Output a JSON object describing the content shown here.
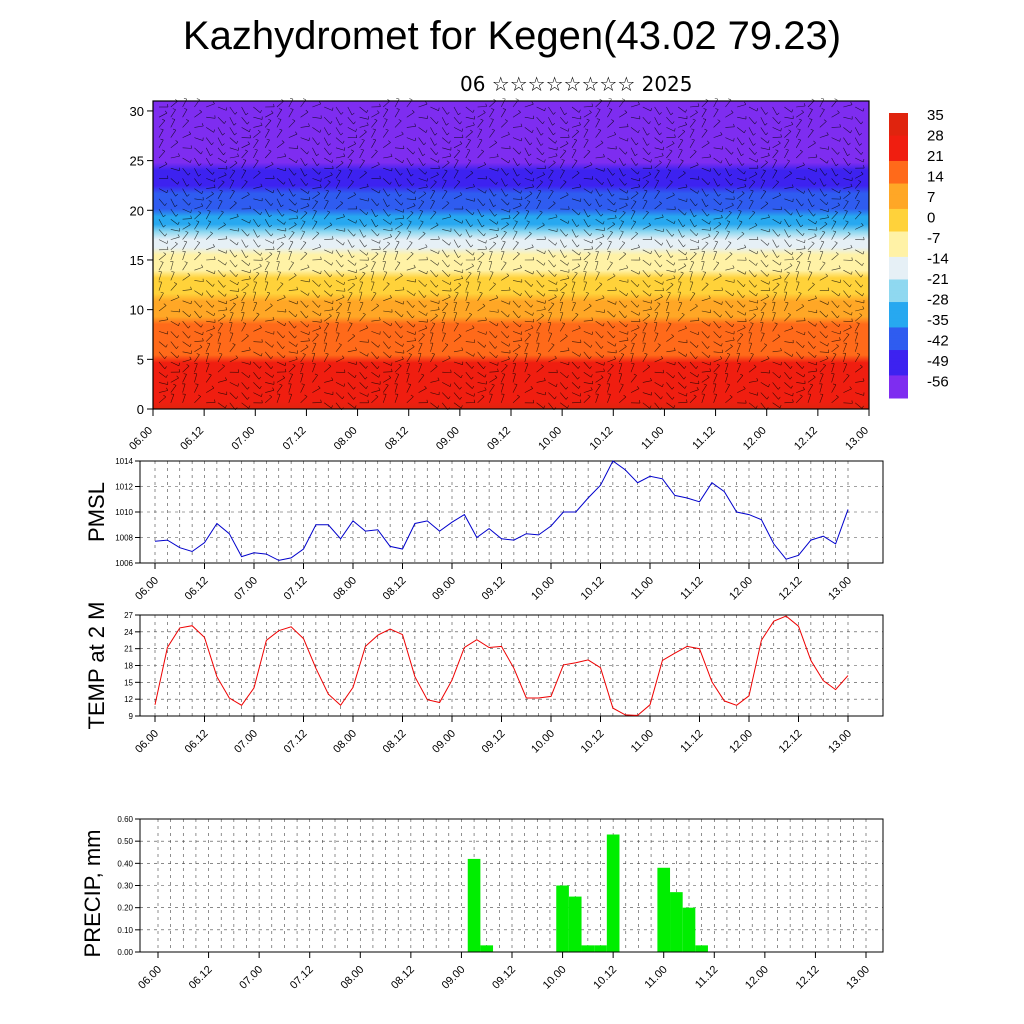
{
  "title": "Kazhydromet for Kegen(43.02 79.23)",
  "subtitle": "06 ☆☆☆☆☆☆☆☆ 2025",
  "time_ticks": [
    "06.00",
    "06.12",
    "07.00",
    "07.12",
    "08.00",
    "08.12",
    "09.00",
    "09.12",
    "10.00",
    "10.12",
    "11.00",
    "11.12",
    "12.00",
    "12.12",
    "13.00"
  ],
  "chart_data": [
    {
      "type": "heatmap",
      "title": "",
      "xlabel": "",
      "ylabel": "",
      "y_ticks": [
        0,
        5,
        10,
        15,
        20,
        25,
        30
      ],
      "ylim": [
        0,
        31
      ],
      "colorbar_labels": [
        "35",
        "28",
        "21",
        "14",
        "7",
        "0",
        "-7",
        "-14",
        "-21",
        "-28",
        "-35",
        "-42",
        "-49",
        "-56"
      ],
      "colorbar_range": [
        -63,
        38
      ],
      "colormap": [
        "#7e2df0",
        "#3d22f0",
        "#2f5cf0",
        "#27a8f0",
        "#8fd8f0",
        "#e6f0f6",
        "#fff2a6",
        "#ffd23a",
        "#ffa726",
        "#ff6a1a",
        "#f01e10",
        "#e0240e"
      ],
      "temperature_profile": [
        [
          0,
          30
        ],
        [
          5,
          22
        ],
        [
          10,
          10
        ],
        [
          15,
          -8
        ],
        [
          17,
          -20
        ],
        [
          20,
          -40
        ],
        [
          25,
          -56
        ],
        [
          31,
          -60
        ]
      ],
      "description_layers": "temperature decreasing with height, overlaid wind barbs"
    },
    {
      "type": "line",
      "ylabel": "PMSL",
      "ylim": [
        1006,
        1014
      ],
      "y_ticks": [
        1006,
        1008,
        1010,
        1012,
        1014
      ],
      "color": "#0000cc",
      "x_start": "06.00",
      "x_step_hours": 3,
      "values": [
        1007.7,
        1007.8,
        1007.2,
        1006.9,
        1007.6,
        1009.1,
        1008.3,
        1006.5,
        1006.8,
        1006.7,
        1006.2,
        1006.4,
        1007.1,
        1009.0,
        1009.0,
        1007.9,
        1009.3,
        1008.5,
        1008.6,
        1007.3,
        1007.1,
        1009.1,
        1009.3,
        1008.5,
        1009.2,
        1009.8,
        1008.0,
        1008.7,
        1007.9,
        1007.8,
        1008.3,
        1008.2,
        1008.9,
        1010.0,
        1010.0,
        1011.1,
        1012.1,
        1014.0,
        1013.3,
        1012.3,
        1012.8,
        1012.6,
        1011.3,
        1011.1,
        1010.8,
        1012.3,
        1011.6,
        1010.0,
        1009.8,
        1009.4,
        1007.5,
        1006.3,
        1006.6,
        1007.8,
        1008.1,
        1007.5,
        1010.2
      ]
    },
    {
      "type": "line",
      "ylabel": "TEMP at 2 M",
      "ylim": [
        9,
        27
      ],
      "y_ticks": [
        9,
        12,
        15,
        18,
        21,
        24,
        27
      ],
      "color": "#ee0000",
      "x_start": "06.00",
      "x_step_hours": 3,
      "values": [
        11.0,
        21.2,
        24.7,
        25.1,
        23.0,
        16.0,
        12.2,
        10.9,
        14.0,
        22.5,
        24.2,
        24.9,
        22.8,
        17.5,
        12.9,
        10.9,
        14.1,
        21.4,
        23.4,
        24.5,
        23.5,
        16.0,
        11.9,
        11.4,
        15.4,
        21.2,
        22.6,
        21.2,
        21.4,
        17.5,
        12.2,
        12.2,
        12.5,
        18.1,
        18.5,
        19.0,
        17.6,
        10.4,
        9.2,
        9.1,
        11.0,
        18.9,
        20.2,
        21.4,
        21.0,
        15.1,
        11.7,
        10.9,
        12.6,
        22.5,
        25.9,
        26.8,
        25.0,
        18.9,
        15.3,
        13.7,
        16.2
      ]
    },
    {
      "type": "bar",
      "ylabel": "PRECIP, mm",
      "ylim": [
        0,
        0.6
      ],
      "y_ticks": [
        "0.00",
        "0.10",
        "0.20",
        "0.30",
        "0.40",
        "0.50",
        "0.60"
      ],
      "color": "#00ee00",
      "x_start": "06.00",
      "x_step_hours": 3,
      "bars": [
        {
          "time": "09.03",
          "value": 0.42
        },
        {
          "time": "09.06",
          "value": 0.03
        },
        {
          "time": "10.00",
          "value": 0.3
        },
        {
          "time": "10.03",
          "value": 0.25
        },
        {
          "time": "10.06",
          "value": 0.03
        },
        {
          "time": "10.09",
          "value": 0.03
        },
        {
          "time": "10.12",
          "value": 0.53
        },
        {
          "time": "11.00",
          "value": 0.38
        },
        {
          "time": "11.03",
          "value": 0.27
        },
        {
          "time": "11.06",
          "value": 0.2
        },
        {
          "time": "11.09",
          "value": 0.03
        }
      ]
    }
  ]
}
